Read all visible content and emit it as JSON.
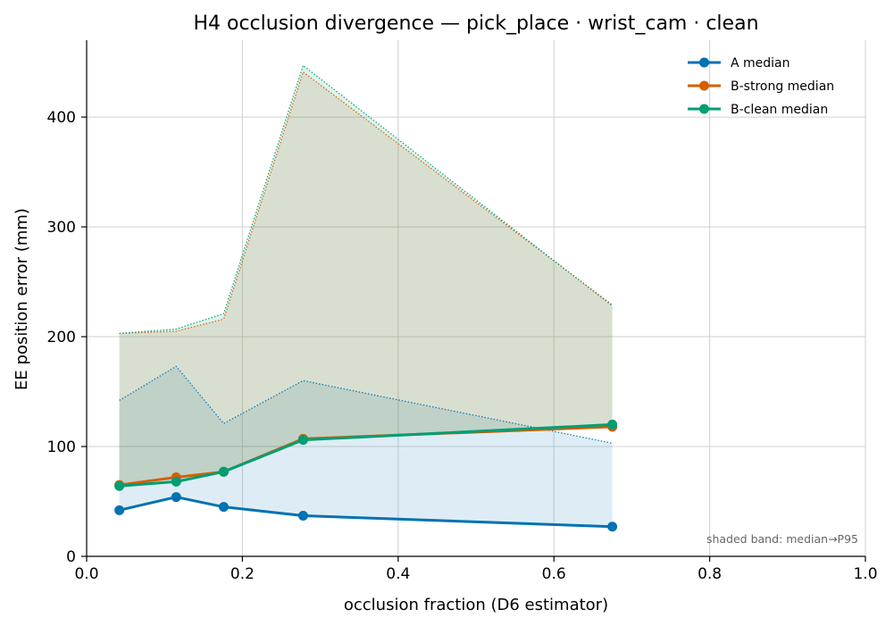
{
  "chart_data": {
    "type": "line",
    "title": "H4 occlusion divergence — pick_place · wrist_cam · clean",
    "xlabel": "occlusion fraction (D6 estimator)",
    "ylabel": "EE position error (mm)",
    "xlim": [
      0.0,
      1.0
    ],
    "ylim": [
      0,
      470
    ],
    "x_ticks": [
      0.0,
      0.2,
      0.4,
      0.6,
      0.8,
      1.0
    ],
    "x_tick_labels": [
      "0.0",
      "0.2",
      "0.4",
      "0.6",
      "0.8",
      "1.0"
    ],
    "y_ticks": [
      0,
      100,
      200,
      300,
      400
    ],
    "y_tick_labels": [
      "0",
      "100",
      "200",
      "300",
      "400"
    ],
    "grid": true,
    "legend_position": "top-right",
    "note": "shaded band: median→P95",
    "x": [
      0.042,
      0.115,
      0.176,
      0.278,
      0.675
    ],
    "series": [
      {
        "name": "A median",
        "color": "#0072b2",
        "median": [
          42,
          54,
          45,
          37,
          27
        ],
        "p95": [
          142,
          173,
          121,
          160,
          103
        ]
      },
      {
        "name": "B-strong median",
        "color": "#d55e00",
        "median": [
          65,
          72,
          77,
          107,
          118
        ],
        "p95": [
          203,
          205,
          216,
          441,
          229
        ]
      },
      {
        "name": "B-clean median",
        "color": "#009e73",
        "median": [
          64,
          68,
          77,
          106,
          120
        ],
        "p95": [
          203,
          207,
          221,
          447,
          228
        ]
      }
    ]
  }
}
